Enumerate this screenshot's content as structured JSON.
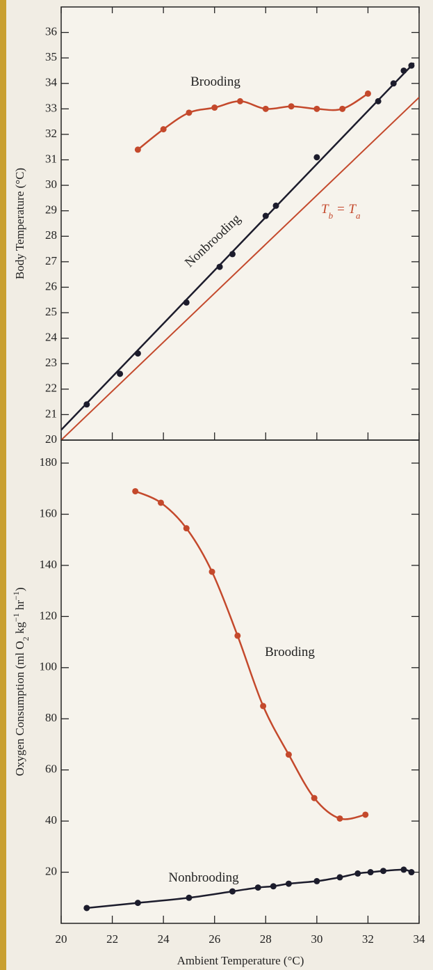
{
  "chart_data": [
    {
      "type": "line",
      "y_label": "Body Temperature (°C)",
      "xlim": [
        20,
        34
      ],
      "xticks": [
        20,
        22,
        24,
        26,
        28,
        30,
        32,
        34
      ],
      "ylim": [
        20,
        37
      ],
      "yticks": [
        20,
        21,
        22,
        23,
        24,
        25,
        26,
        27,
        28,
        29,
        30,
        31,
        32,
        33,
        34,
        35,
        36
      ],
      "series": [
        {
          "name": "Brooding",
          "color": "#c4492c",
          "smooth": true,
          "x": [
            23,
            24,
            25,
            26,
            27,
            28,
            29,
            30,
            31,
            32
          ],
          "values": [
            31.4,
            32.2,
            32.85,
            33.05,
            33.3,
            33.0,
            33.1,
            33.0,
            33.0,
            33.6
          ]
        },
        {
          "name": "Nonbrooding",
          "color": "#1c1c2c",
          "smooth": false,
          "x": [
            21,
            22.3,
            23,
            24.9,
            26.2,
            26.7,
            28,
            28.4,
            30,
            32.4,
            33,
            33.4,
            33.7
          ],
          "values": [
            21.4,
            22.6,
            23.4,
            25.4,
            26.8,
            27.3,
            28.8,
            29.2,
            31.1,
            33.3,
            34,
            34.5,
            34.7
          ],
          "fit": {
            "x": [
              20,
              33.8
            ],
            "values": [
              20.4,
              34.8
            ]
          }
        }
      ],
      "reference_line": {
        "label": [
          "T",
          "b",
          " = T",
          "a"
        ],
        "color": "#c4492c",
        "x": [
          20,
          34
        ],
        "values": [
          20,
          33.45
        ]
      }
    },
    {
      "type": "line",
      "x_label": "Ambient Temperature (°C)",
      "y_label": [
        "Oxygen Consumption (ml O",
        "2",
        " kg",
        "−1",
        " hr",
        "−1",
        ")"
      ],
      "xlim": [
        20,
        34
      ],
      "xticks": [
        20,
        22,
        24,
        26,
        28,
        30,
        32,
        34
      ],
      "ylim": [
        0,
        189
      ],
      "yticks": [
        20,
        40,
        60,
        80,
        100,
        120,
        140,
        160,
        180
      ],
      "series": [
        {
          "name": "Brooding",
          "color": "#c4492c",
          "smooth": true,
          "x": [
            22.9,
            23.9,
            24.9,
            25.9,
            26.9,
            27.9,
            28.9,
            29.9,
            30.9,
            31.9
          ],
          "values": [
            169,
            164.5,
            154.5,
            137.5,
            112.5,
            85,
            66,
            49,
            41,
            42.5
          ]
        },
        {
          "name": "Nonbrooding",
          "color": "#1c1c2c",
          "smooth": true,
          "x": [
            21,
            23,
            25,
            26.7,
            27.7,
            28.3,
            28.9,
            30,
            30.9,
            31.6,
            32.1,
            32.6,
            33.4,
            33.7
          ],
          "values": [
            6,
            8,
            10,
            12.5,
            14,
            14.5,
            15.5,
            16.5,
            18,
            19.5,
            20,
            20.5,
            21,
            20
          ]
        }
      ]
    }
  ]
}
